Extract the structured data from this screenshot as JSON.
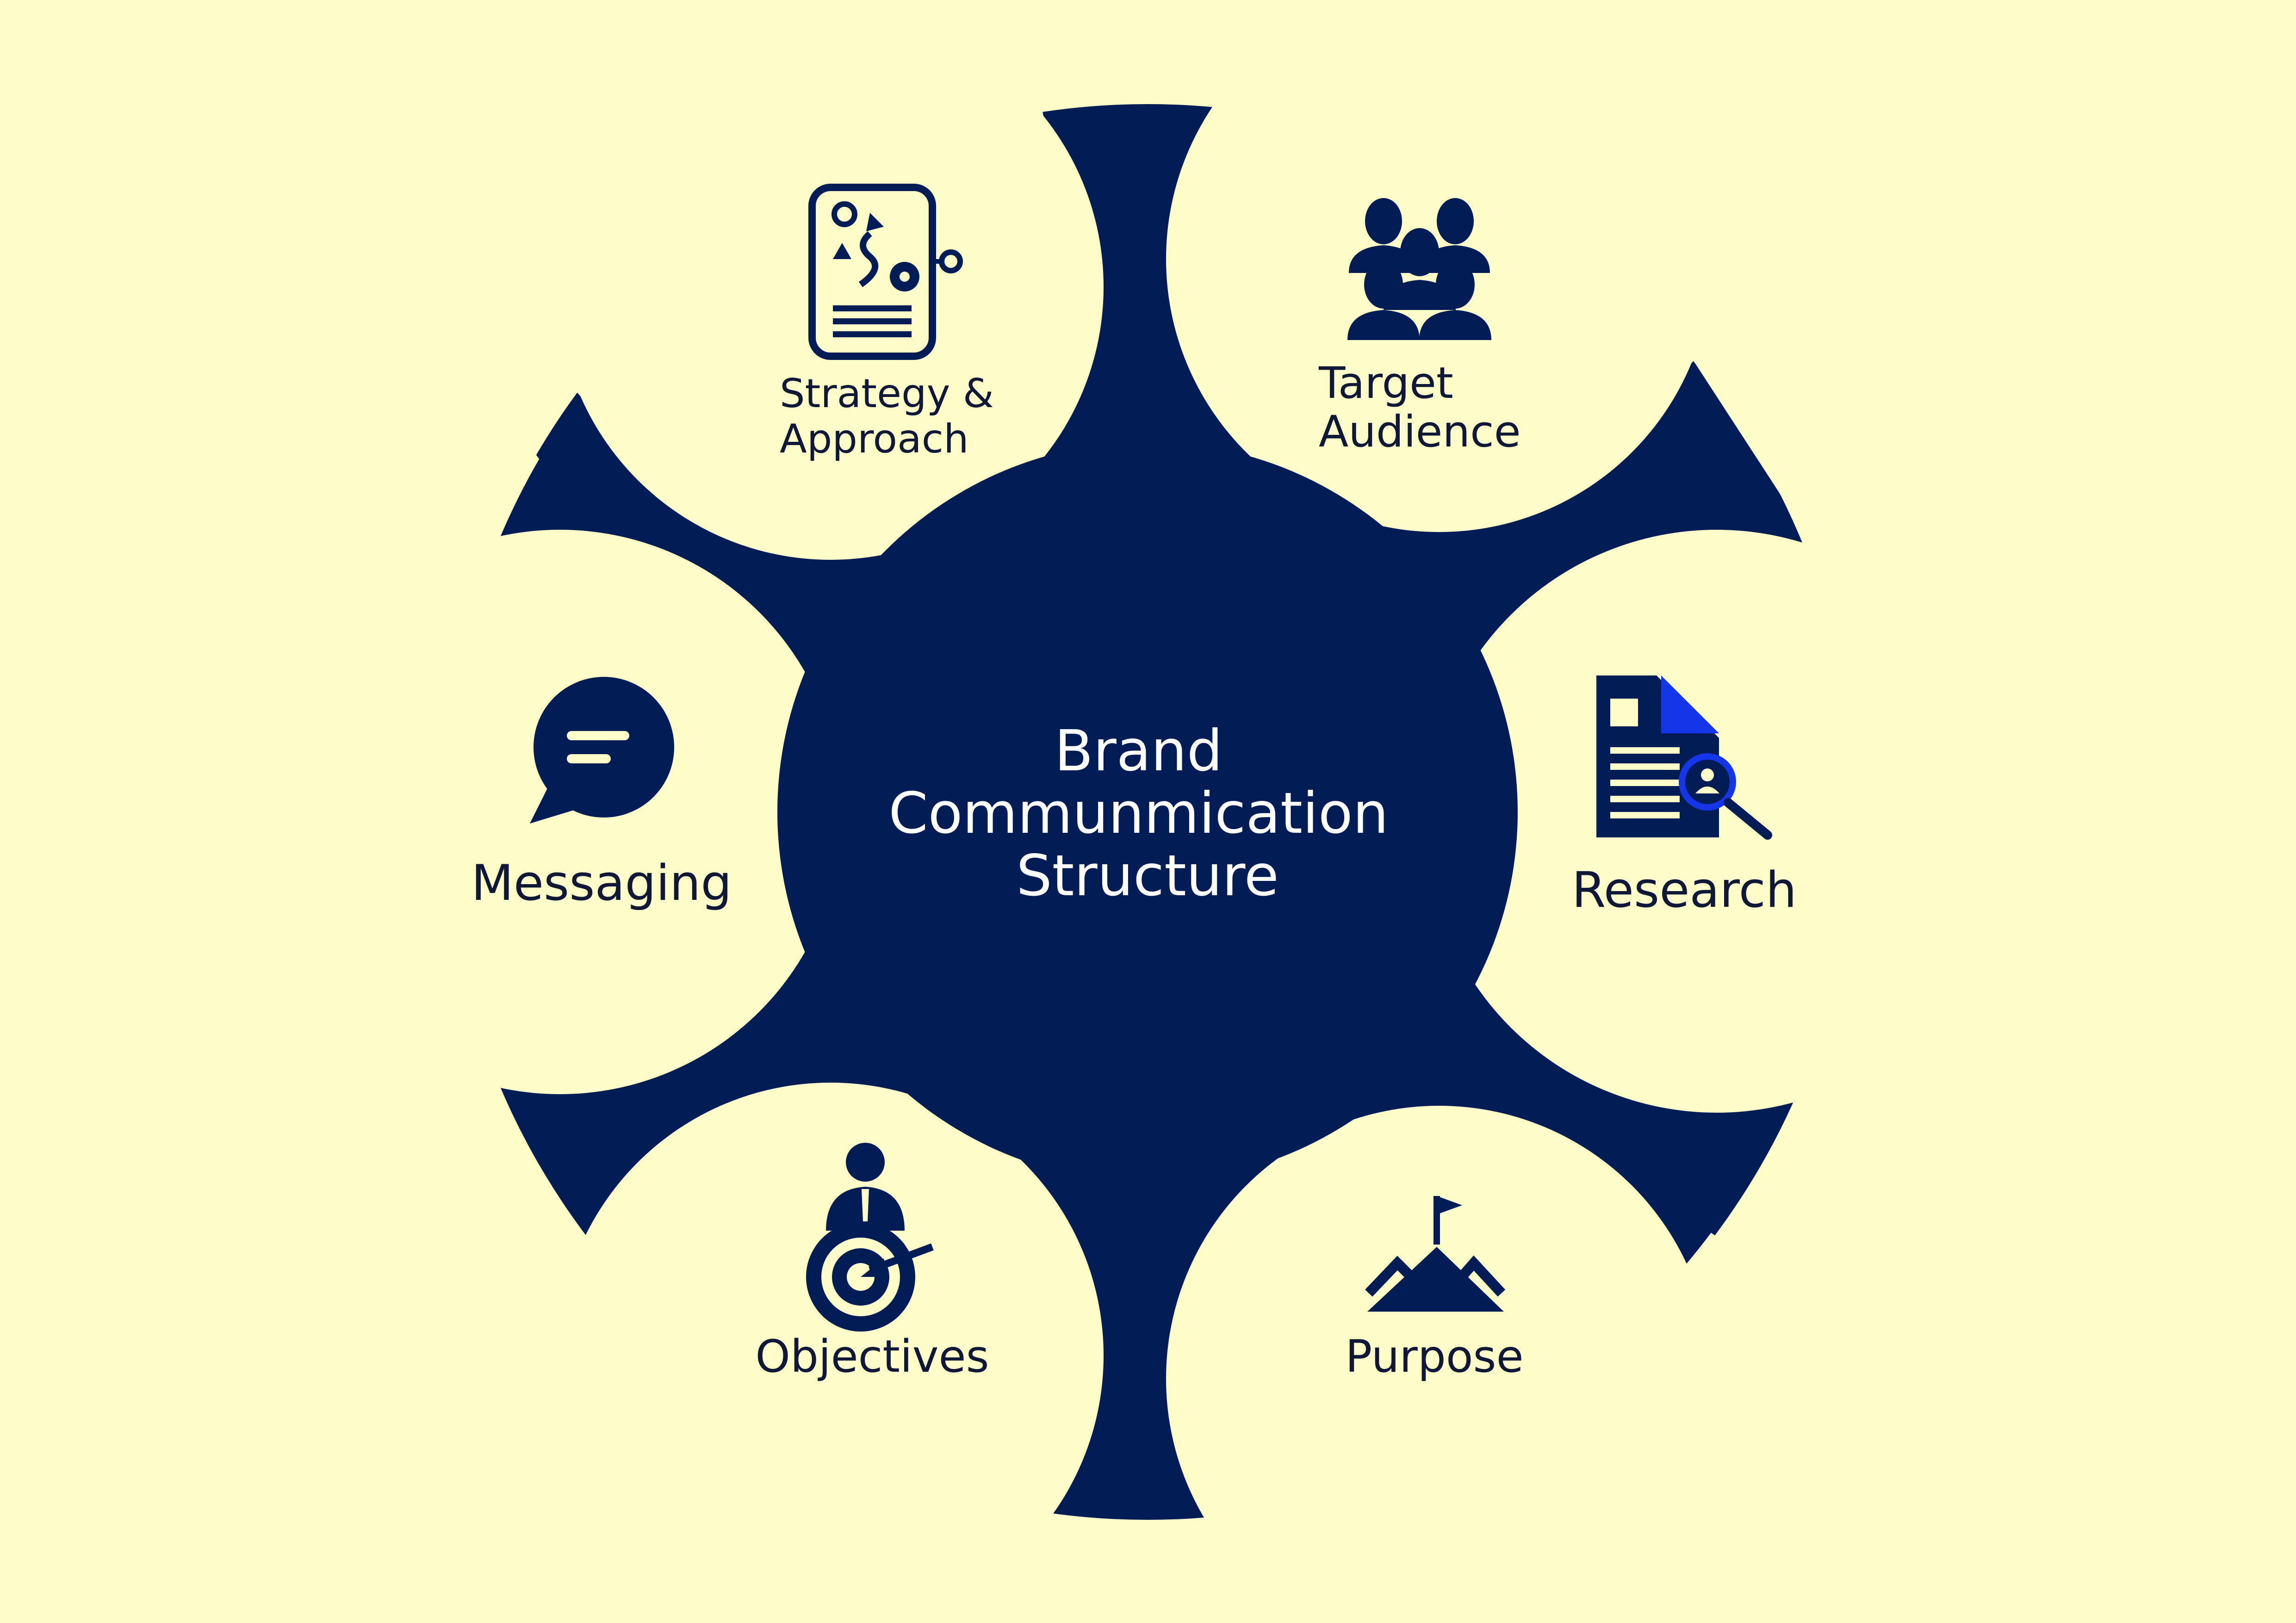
{
  "diagram": {
    "title_lines": [
      "Brand",
      "Communmication",
      "Structure"
    ],
    "nodes": [
      {
        "id": "strategy",
        "label_lines": [
          "Strategy &",
          "Approach"
        ],
        "icon": "strategy-board-icon"
      },
      {
        "id": "audience",
        "label_lines": [
          "Target",
          "Audience"
        ],
        "icon": "audience-group-icon"
      },
      {
        "id": "research",
        "label_lines": [
          "Research"
        ],
        "icon": "document-search-icon"
      },
      {
        "id": "purpose",
        "label_lines": [
          "Purpose"
        ],
        "icon": "mountain-flag-icon"
      },
      {
        "id": "objectives",
        "label_lines": [
          "Objectives"
        ],
        "icon": "target-person-icon"
      },
      {
        "id": "messaging",
        "label_lines": [
          "Messaging"
        ],
        "icon": "speech-bubble-icon"
      }
    ]
  },
  "colors": {
    "background": "#FEFDCA",
    "shape": "#021D56",
    "accent": "#1535E8",
    "text": "#101838",
    "center_text": "#FFFFFF"
  }
}
